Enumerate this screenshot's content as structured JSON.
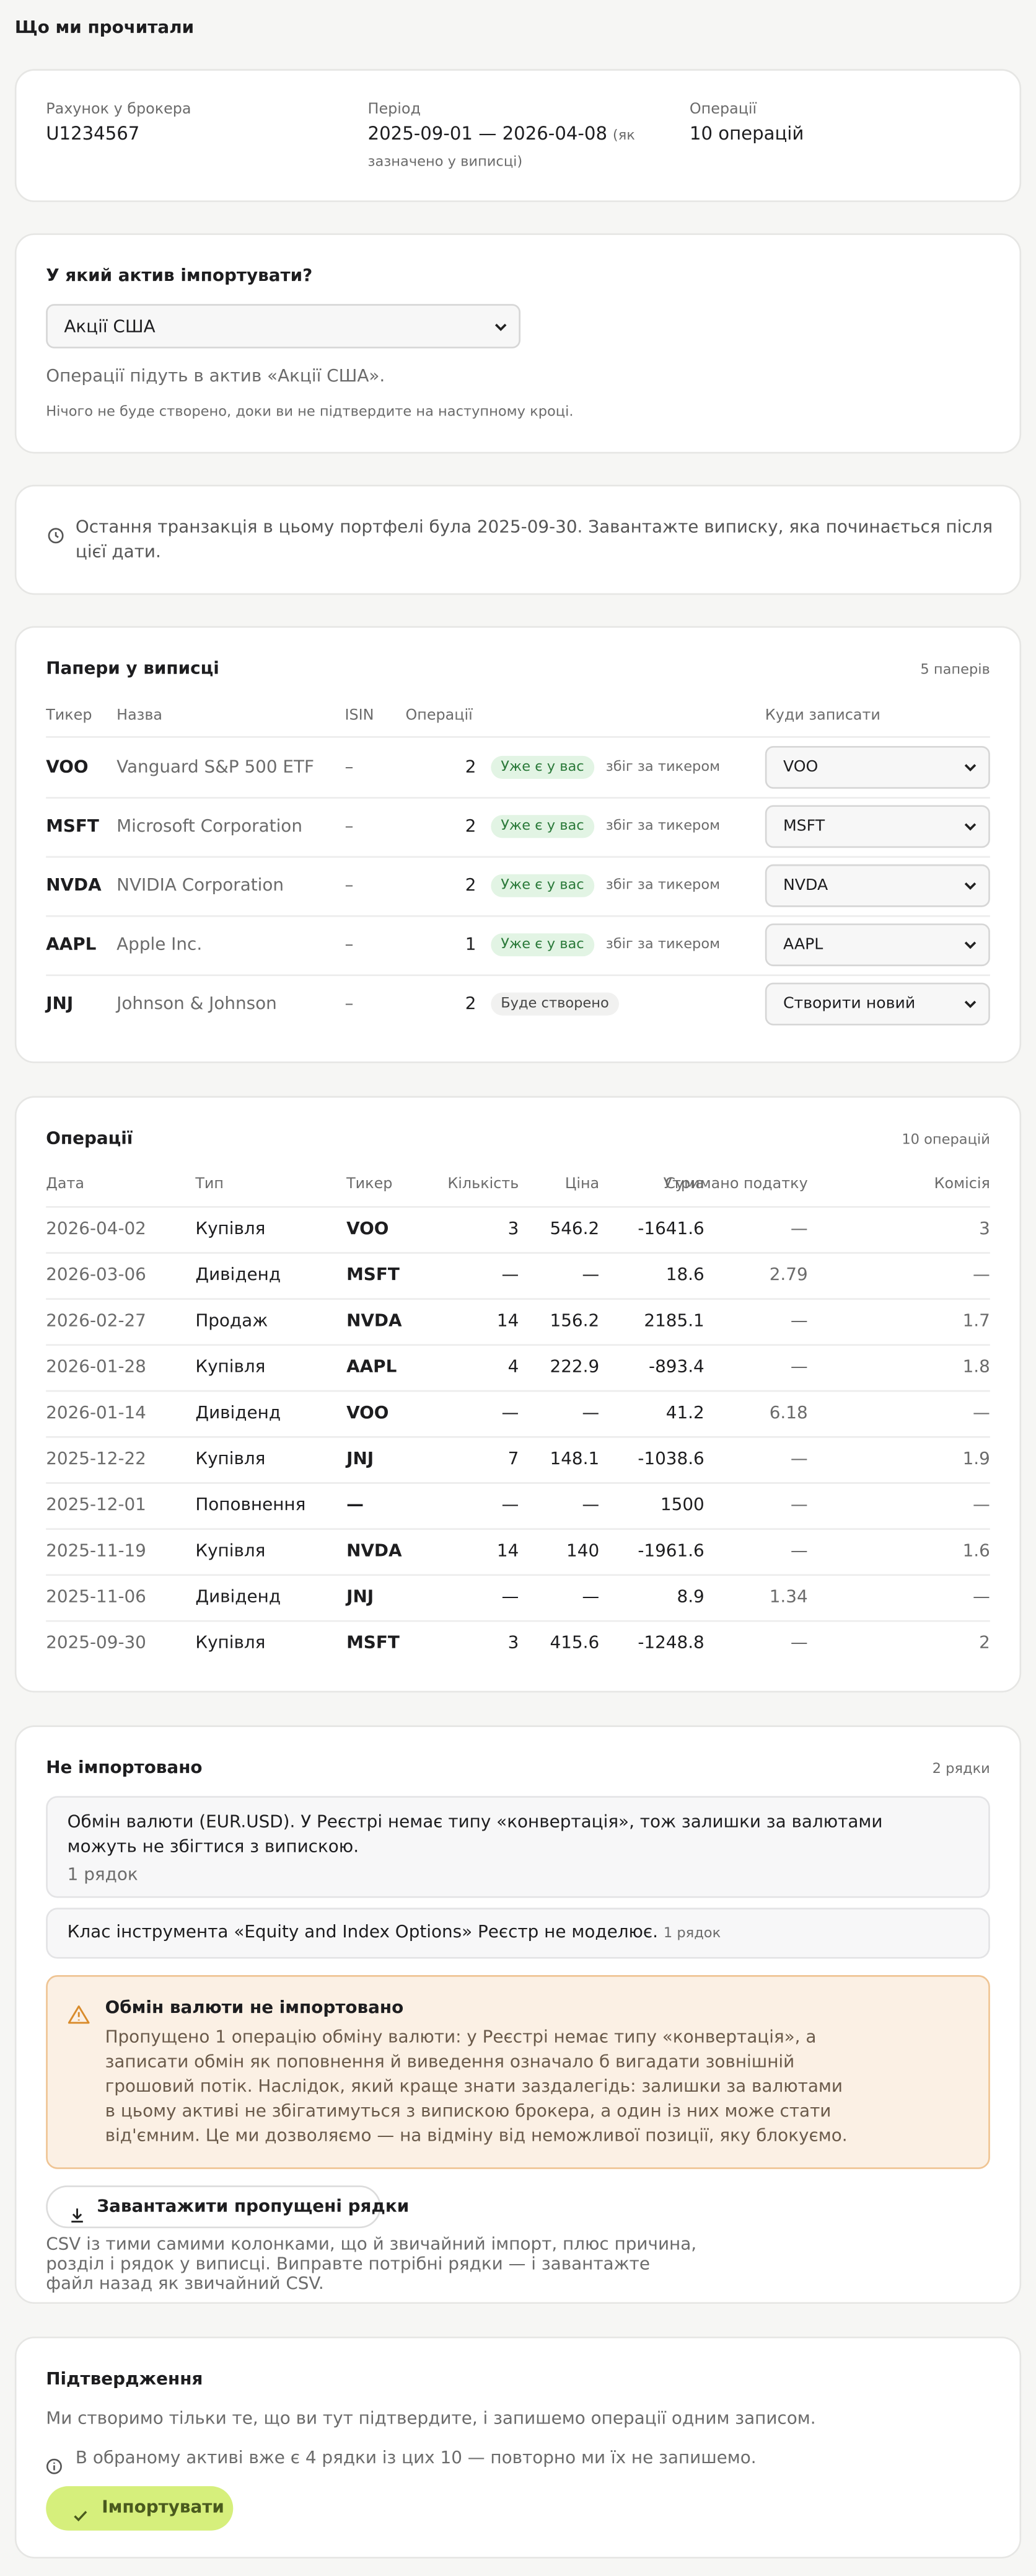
{
  "header": {
    "title": "Що ми прочитали"
  },
  "summary": {
    "fields": [
      {
        "label": "Рахунок у брокера",
        "value": "U1234567"
      },
      {
        "label": "Період",
        "value": "2025-09-01 — 2026-04-08",
        "note": "(як зазначено у виписці)"
      },
      {
        "label": "Операції",
        "value": "10 операцій"
      }
    ]
  },
  "asset": {
    "title": "У який актив імпортувати?",
    "selected": "Акції США",
    "hint": "Операції підуть в актив «Акції США».",
    "note": "Нічого не буде створено, доки ви не підтвердите на наступному кроці."
  },
  "last_transaction": {
    "text": "Остання транзакція в цьому портфелі була 2025-09-30. Завантажте виписку, яка починається після цієї дати."
  },
  "securities": {
    "title": "Папери у виписці",
    "count": "5 паперів",
    "columns": [
      "Тикер",
      "Назва",
      "ISIN",
      "Операції",
      "Куди записати"
    ],
    "rows": [
      {
        "ticker": "VOO",
        "name": "Vanguard S&P 500 ETF",
        "isin": "–",
        "operations": 2,
        "status": "Уже є у вас",
        "match": "збіг за тикером",
        "target": "VOO"
      },
      {
        "ticker": "MSFT",
        "name": "Microsoft Corporation",
        "isin": "–",
        "operations": 2,
        "status": "Уже є у вас",
        "match": "збіг за тикером",
        "target": "MSFT"
      },
      {
        "ticker": "NVDA",
        "name": "NVIDIA Corporation",
        "isin": "–",
        "operations": 2,
        "status": "Уже є у вас",
        "match": "збіг за тикером",
        "target": "NVDA"
      },
      {
        "ticker": "AAPL",
        "name": "Apple Inc.",
        "isin": "–",
        "operations": 1,
        "status": "Уже є у вас",
        "match": "збіг за тикером",
        "target": "AAPL"
      },
      {
        "ticker": "JNJ",
        "name": "Johnson & Johnson",
        "isin": "–",
        "operations": 2,
        "status": "Буде створено",
        "target": "Створити новий"
      }
    ]
  },
  "operations": {
    "title": "Операції",
    "count": "10 операцій",
    "columns": [
      "Дата",
      "Тип",
      "Тикер",
      "Кількість",
      "Ціна",
      "Сума",
      "Утримано податку",
      "Комісія"
    ],
    "rows": [
      [
        "2026-04-02",
        "Купівля",
        "VOO",
        3,
        546.2,
        -1641.6,
        "—",
        3
      ],
      [
        "2026-03-06",
        "Дивіденд",
        "MSFT",
        "—",
        "—",
        18.6,
        2.79,
        "—"
      ],
      [
        "2026-02-27",
        "Продаж",
        "NVDA",
        14,
        156.2,
        2185.1,
        "—",
        1.7
      ],
      [
        "2026-01-28",
        "Купівля",
        "AAPL",
        4,
        222.9,
        -893.4,
        "—",
        1.8
      ],
      [
        "2026-01-14",
        "Дивіденд",
        "VOO",
        "—",
        "—",
        41.2,
        6.18,
        "—"
      ],
      [
        "2025-12-22",
        "Купівля",
        "JNJ",
        7,
        148.1,
        -1038.6,
        "—",
        1.9
      ],
      [
        "2025-12-01",
        "Поповнення",
        "—",
        "—",
        "—",
        1500,
        "—",
        "—"
      ],
      [
        "2025-11-19",
        "Купівля",
        "NVDA",
        14,
        140,
        -1961.6,
        "—",
        1.6
      ],
      [
        "2025-11-06",
        "Дивіденд",
        "JNJ",
        "—",
        "—",
        8.9,
        1.34,
        "—"
      ],
      [
        "2025-09-30",
        "Купівля",
        "MSFT",
        3,
        415.6,
        -1248.8,
        "—",
        2
      ]
    ]
  },
  "not_imported": {
    "title": "Не імпортовано",
    "count": "2 рядки",
    "items": [
      {
        "text": "Обмін валюти (EUR.USD). У Реєстрі немає типу «конвертація», тож залишки за валютами можуть не збігтися з випискою.",
        "rows": "1 рядок"
      },
      {
        "text": "Клас інструмента «Equity and Index Options» Реєстр не моделює.",
        "rows": "1 рядок"
      }
    ],
    "warning": {
      "title": "Обмін валюти не імпортовано",
      "text": "Пропущено 1 операцію обміну валюти: у Реєстрі немає типу «конвертація», а записати обмін як поповнення й виведення означало б вигадати зовнішній грошовий потік. Наслідок, який краще знати заздалегідь: залишки за валютами в цьому активі не збігатимуться з випискою брокера, а один із них може стати від'ємним. Це ми дозволяємо — на відміну від неможливої позиції, яку блокуємо."
    },
    "download_button": "Завантажити пропущені рядки",
    "download_note": "CSV із тими самими колонками, що й звичайний імпорт, плюс причина, розділ і рядок у виписці. Виправте потрібні рядки — і завантажте файл назад як звичайний CSV."
  },
  "confirmation": {
    "title": "Підтвердження",
    "text": "Ми створимо тільки те, що ви тут підтвердите, і запишемо операції одним записом.",
    "info": "В обраному активі вже є 4 рядки із цих 10 — повторно ми їх не запишемо.",
    "button": "Імпортувати"
  }
}
